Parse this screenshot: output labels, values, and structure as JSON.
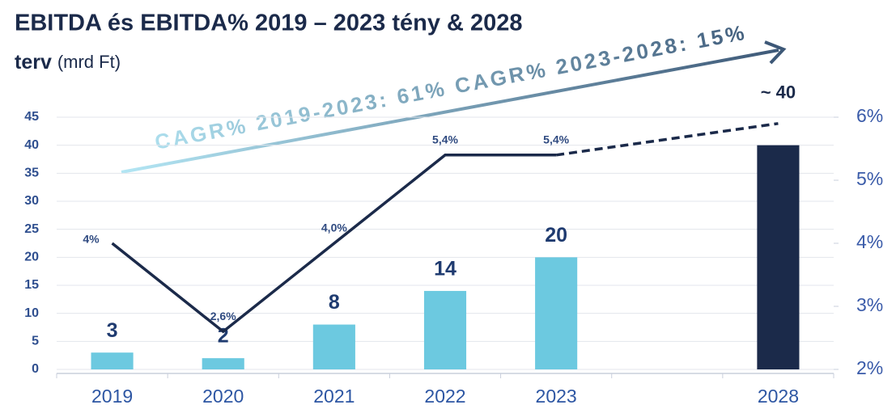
{
  "chart_data": {
    "type": "bar_line",
    "title": "EBITDA és EBITDA% 2019 – 2023 tény & 2028",
    "title_line2": "terv",
    "unit": "(mrd Ft)",
    "annotations": [
      "CAGR% 2019-2023: 61%",
      "CAGR% 2023-2028: 15%"
    ],
    "categories": [
      "2019",
      "2020",
      "2021",
      "2022",
      "2023",
      null,
      "2028"
    ],
    "ylim": [
      0,
      45
    ],
    "yticks": [
      0,
      5,
      10,
      15,
      20,
      25,
      30,
      35,
      40,
      45
    ],
    "y2lim": [
      2,
      6
    ],
    "y2ticks": [
      {
        "value": 2,
        "label": "2%"
      },
      {
        "value": 3,
        "label": "3%"
      },
      {
        "value": 4,
        "label": "4%"
      },
      {
        "value": 5,
        "label": "5%"
      },
      {
        "value": 6,
        "label": "6%"
      }
    ],
    "grid": true,
    "series": [
      {
        "kind": "bar",
        "color": "#6cc9e0",
        "colors": [
          "#6cc9e0",
          "#6cc9e0",
          "#6cc9e0",
          "#6cc9e0",
          "#6cc9e0",
          null,
          "#1b2a4a"
        ],
        "values": [
          3,
          2,
          8,
          14,
          20,
          null,
          40
        ],
        "value_labels": [
          "3",
          "2",
          "8",
          "14",
          "20",
          null,
          "~ 40"
        ]
      },
      {
        "kind": "line",
        "axis": "y2",
        "color": "#1b2a4a",
        "dash": false,
        "values": [
          4,
          2.6,
          4.0,
          5.4,
          5.4,
          null,
          null
        ],
        "value_labels": [
          "4%",
          "2,6%",
          "4,0%",
          "5,4%",
          "5,4%",
          null,
          null
        ]
      },
      {
        "kind": "line",
        "axis": "y2",
        "color": "#1b2a4a",
        "dash": true,
        "values": [
          null,
          null,
          null,
          null,
          5.4,
          5.65,
          5.9
        ]
      }
    ]
  }
}
